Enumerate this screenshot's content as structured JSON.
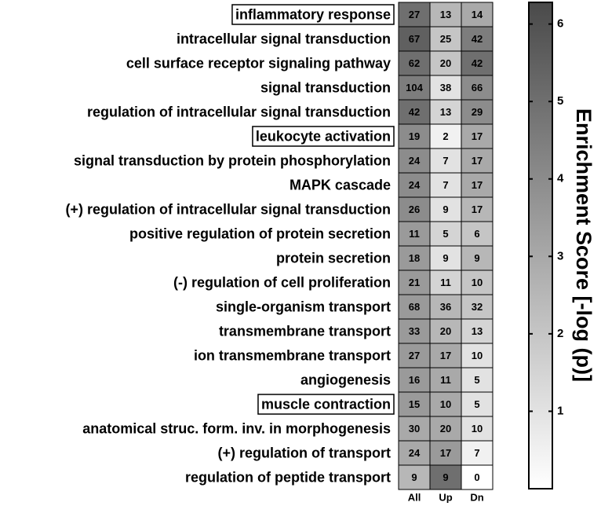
{
  "chart_data": {
    "type": "heatmap",
    "y_categories": [
      "inflammatory response",
      "intracellular signal transduction",
      "cell surface receptor signaling pathway",
      "signal transduction",
      "regulation of intracellular signal transduction",
      "leukocyte activation",
      "signal transduction by protein phosphorylation",
      "MAPK cascade",
      "(+) regulation of intracellular signal transduction",
      "positive regulation of protein secretion",
      "protein secretion",
      "(-) regulation of cell proliferation",
      "single-organism transport",
      "transmembrane transport",
      "ion transmembrane transport",
      "angiogenesis",
      "muscle contraction",
      "anatomical struc. form. inv. in morphogenesis",
      "(+) regulation of transport",
      "regulation of peptide transport"
    ],
    "x_categories": [
      "All",
      "Up",
      "Dn"
    ],
    "counts": [
      [
        27,
        13,
        14
      ],
      [
        67,
        25,
        42
      ],
      [
        62,
        20,
        42
      ],
      [
        104,
        38,
        66
      ],
      [
        42,
        13,
        29
      ],
      [
        19,
        2,
        17
      ],
      [
        24,
        7,
        17
      ],
      [
        24,
        7,
        17
      ],
      [
        26,
        9,
        17
      ],
      [
        11,
        5,
        6
      ],
      [
        18,
        9,
        9
      ],
      [
        21,
        11,
        10
      ],
      [
        68,
        36,
        32
      ],
      [
        33,
        20,
        13
      ],
      [
        27,
        17,
        10
      ],
      [
        16,
        11,
        5
      ],
      [
        15,
        10,
        5
      ],
      [
        30,
        20,
        10
      ],
      [
        24,
        17,
        7
      ],
      [
        9,
        9,
        0
      ]
    ],
    "values": [
      [
        5.0,
        2.5,
        3.0
      ],
      [
        5.5,
        2.0,
        4.5
      ],
      [
        5.0,
        2.0,
        5.0
      ],
      [
        4.5,
        1.0,
        4.0
      ],
      [
        5.0,
        1.5,
        4.0
      ],
      [
        4.0,
        0.5,
        3.0
      ],
      [
        4.0,
        1.0,
        3.0
      ],
      [
        4.0,
        1.0,
        3.0
      ],
      [
        4.0,
        1.0,
        2.5
      ],
      [
        3.5,
        1.5,
        2.0
      ],
      [
        3.5,
        1.0,
        2.5
      ],
      [
        3.5,
        1.5,
        2.0
      ],
      [
        3.5,
        2.5,
        2.0
      ],
      [
        3.5,
        2.5,
        1.5
      ],
      [
        3.5,
        3.0,
        1.0
      ],
      [
        3.5,
        3.0,
        1.0
      ],
      [
        3.5,
        3.0,
        1.0
      ],
      [
        3.0,
        3.0,
        1.0
      ],
      [
        3.0,
        3.5,
        0.5
      ],
      [
        2.5,
        5.0,
        0.0
      ]
    ],
    "boxed_rows": [
      0,
      5,
      16
    ],
    "zlim": [
      0,
      6.28
    ],
    "zticks": [
      1,
      2,
      3,
      4,
      5,
      6
    ],
    "colors": [
      "#ffffff",
      "#4a4a4a"
    ],
    "colorbar_label": "Enrichment Score [-log (p)]"
  }
}
